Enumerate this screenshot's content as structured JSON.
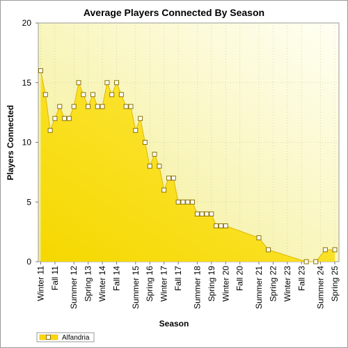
{
  "chart_data": {
    "type": "area",
    "title": "Average Players Connected By Season",
    "xlabel": "Season",
    "ylabel": "Players Connected",
    "ylim": [
      0,
      20
    ],
    "yticks": [
      0,
      5,
      10,
      15,
      20
    ],
    "grid": true,
    "legend_position": "bottom-left",
    "tick_labels": [
      "Winter 11",
      "Fall 11",
      "Summer 12",
      "Spring 13",
      "Winter 14",
      "Fall 14",
      "Summer 15",
      "Spring 16",
      "Winter 17",
      "Fall 17",
      "Summer 18",
      "Spring 19",
      "Winter 20",
      "Fall 20",
      "Summer 21",
      "Spring 22",
      "Winter 23",
      "Fall 23",
      "Summer 24",
      "Spring 25"
    ],
    "series": [
      {
        "name": "Alfandria",
        "color": "#ffd700",
        "values": [
          16,
          14,
          11,
          12,
          13,
          12,
          12,
          13,
          15,
          14,
          13,
          14,
          13,
          13,
          15,
          14,
          15,
          14,
          13,
          13,
          11,
          12,
          10,
          8,
          9,
          8,
          6,
          7,
          7,
          5,
          5,
          5,
          5,
          4,
          4,
          4,
          4,
          3,
          3,
          3,
          null,
          null,
          null,
          null,
          null,
          null,
          2,
          null,
          1,
          null,
          null,
          null,
          null,
          null,
          null,
          null,
          0,
          null,
          0,
          null,
          1,
          null,
          1
        ],
        "markers": [
          true,
          true,
          true,
          true,
          true,
          true,
          true,
          true,
          true,
          true,
          true,
          true,
          true,
          true,
          true,
          true,
          true,
          true,
          true,
          true,
          true,
          true,
          true,
          true,
          true,
          true,
          true,
          true,
          true,
          true,
          true,
          true,
          true,
          true,
          true,
          true,
          true,
          true,
          true,
          true,
          false,
          false,
          false,
          false,
          false,
          false,
          true,
          false,
          true,
          false,
          false,
          false,
          false,
          false,
          false,
          false,
          true,
          false,
          true,
          false,
          true,
          false,
          true
        ]
      }
    ]
  }
}
